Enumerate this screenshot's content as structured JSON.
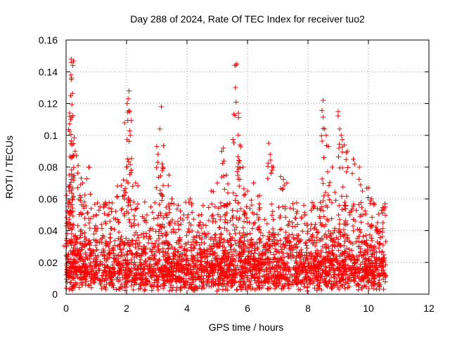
{
  "chart_data": {
    "type": "scatter",
    "title": "Day 288 of 2024, Rate Of TEC Index for receiver tuo2",
    "xlabel": "GPS time / hours",
    "ylabel": "ROTI / TECUs",
    "xlim": [
      0,
      12
    ],
    "ylim": [
      0,
      0.16
    ],
    "xticks": [
      0,
      2,
      4,
      6,
      8,
      10,
      12
    ],
    "xtick_labels": [
      "0",
      "2",
      "4",
      "6",
      "8",
      "10",
      "12"
    ],
    "yticks": [
      0,
      0.02,
      0.04,
      0.06,
      0.08,
      0.1,
      0.12,
      0.14,
      0.16
    ],
    "ytick_labels": [
      "0",
      "0.02",
      "0.04",
      "0.06",
      "0.08",
      "0.1",
      "0.12",
      "0.14",
      "0.16"
    ],
    "grid": true,
    "marker": "plus",
    "color": "#ff0000",
    "data_x_range": [
      0,
      10.6
    ],
    "series": [
      {
        "name": "tuo2",
        "points": [
          [
            0.02,
            0.035
          ],
          [
            0.05,
            0.045
          ],
          [
            0.08,
            0.055
          ],
          [
            0.1,
            0.065
          ],
          [
            0.12,
            0.112
          ],
          [
            0.15,
            0.11
          ],
          [
            0.15,
            0.125
          ],
          [
            0.16,
            0.138
          ],
          [
            0.17,
            0.148
          ],
          [
            0.17,
            0.146
          ],
          [
            0.18,
            0.136
          ],
          [
            0.19,
            0.094
          ],
          [
            0.3,
            0.09
          ],
          [
            0.4,
            0.081
          ],
          [
            0.5,
            0.073
          ],
          [
            0.55,
            0.07
          ],
          [
            0.6,
            0.058
          ],
          [
            0.75,
            0.08
          ],
          [
            0.8,
            0.063
          ],
          [
            1.0,
            0.05
          ],
          [
            1.3,
            0.057
          ],
          [
            1.5,
            0.052
          ],
          [
            1.7,
            0.068
          ],
          [
            1.9,
            0.072
          ],
          [
            2.0,
            0.08
          ],
          [
            2.02,
            0.12
          ],
          [
            2.05,
            0.123
          ],
          [
            2.08,
            0.128
          ],
          [
            2.1,
            0.115
          ],
          [
            2.15,
            0.078
          ],
          [
            2.3,
            0.07
          ],
          [
            2.6,
            0.058
          ],
          [
            2.8,
            0.055
          ],
          [
            3.0,
            0.093
          ],
          [
            3.1,
            0.104
          ],
          [
            3.15,
            0.118
          ],
          [
            3.2,
            0.08
          ],
          [
            3.4,
            0.075
          ],
          [
            3.5,
            0.06
          ],
          [
            4.1,
            0.06
          ],
          [
            4.4,
            0.043
          ],
          [
            4.8,
            0.065
          ],
          [
            5.0,
            0.07
          ],
          [
            5.15,
            0.09
          ],
          [
            5.2,
            0.092
          ],
          [
            5.3,
            0.075
          ],
          [
            5.6,
            0.13
          ],
          [
            5.65,
            0.145
          ],
          [
            5.7,
            0.114
          ],
          [
            5.75,
            0.094
          ],
          [
            5.85,
            0.08
          ],
          [
            6.0,
            0.065
          ],
          [
            6.2,
            0.07
          ],
          [
            6.4,
            0.062
          ],
          [
            6.7,
            0.095
          ],
          [
            6.75,
            0.088
          ],
          [
            6.85,
            0.08
          ],
          [
            7.1,
            0.074
          ],
          [
            7.3,
            0.07
          ],
          [
            7.5,
            0.057
          ],
          [
            7.9,
            0.05
          ],
          [
            8.2,
            0.055
          ],
          [
            8.5,
            0.122
          ],
          [
            8.55,
            0.104
          ],
          [
            8.6,
            0.1
          ],
          [
            8.65,
            0.077
          ],
          [
            8.8,
            0.08
          ],
          [
            9.0,
            0.115
          ],
          [
            9.05,
            0.104
          ],
          [
            9.1,
            0.1
          ],
          [
            9.2,
            0.094
          ],
          [
            9.3,
            0.09
          ],
          [
            9.5,
            0.085
          ],
          [
            9.7,
            0.08
          ],
          [
            9.8,
            0.065
          ],
          [
            10.0,
            0.067
          ],
          [
            10.1,
            0.06
          ],
          [
            10.3,
            0.045
          ],
          [
            10.55,
            0.055
          ]
        ]
      }
    ],
    "noise_band": {
      "note": "dense cluster of small ROTI values between 0 and about 0.04 TECUs spanning the full 0–10.6 h range",
      "y_range": [
        0,
        0.04
      ]
    }
  }
}
